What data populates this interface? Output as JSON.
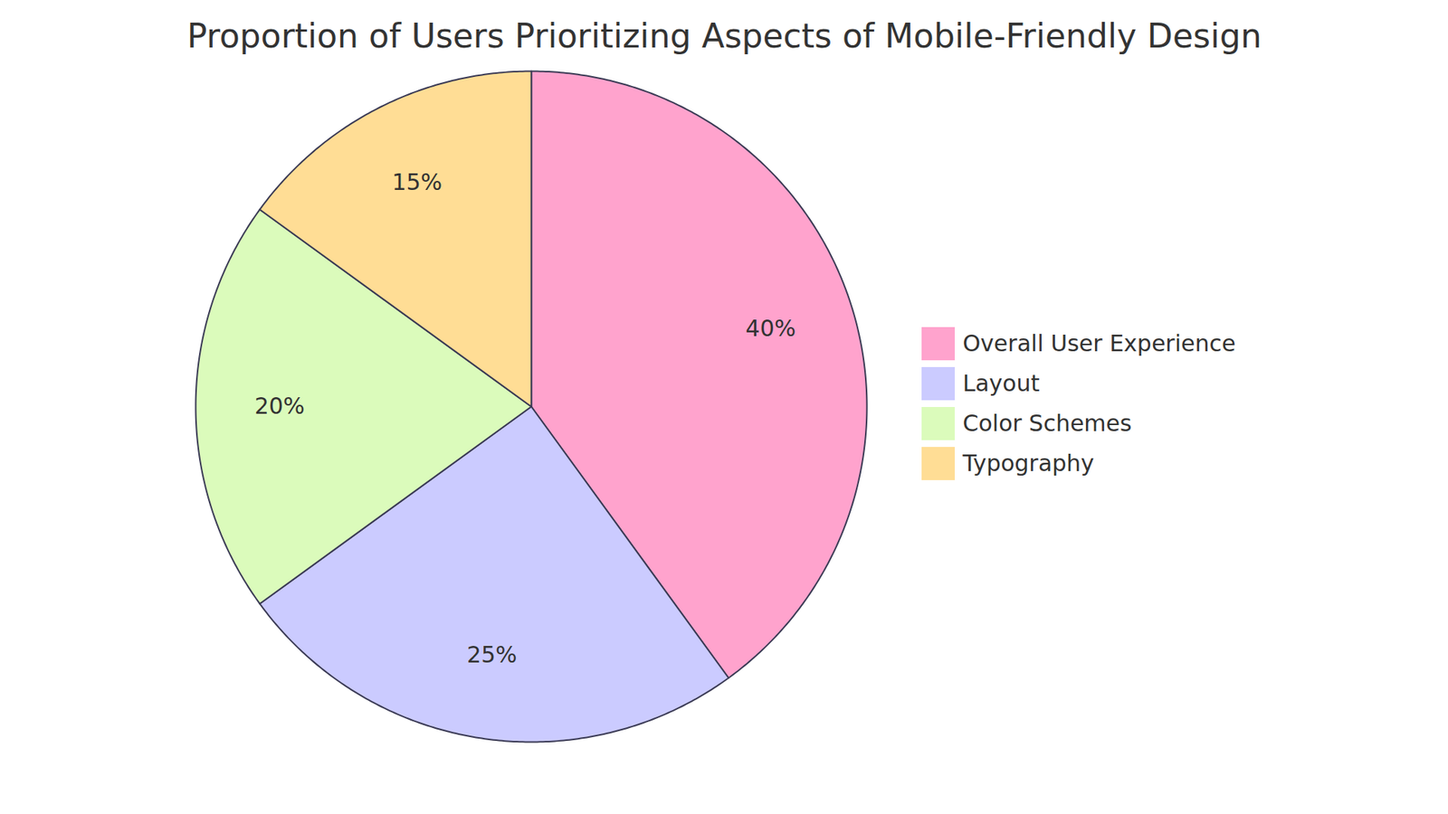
{
  "chart_data": {
    "type": "pie",
    "title": "Proportion of Users Prioritizing Aspects of Mobile-Friendly Design",
    "categories": [
      "Overall User Experience",
      "Layout",
      "Color Schemes",
      "Typography"
    ],
    "values": [
      40,
      25,
      20,
      15
    ],
    "value_labels": [
      "40%",
      "25%",
      "20%",
      "15%"
    ],
    "colors": [
      "#ffa3cd",
      "#cbcbff",
      "#dbfbbb",
      "#ffdd95"
    ],
    "data_labels": true,
    "legend": "right"
  }
}
